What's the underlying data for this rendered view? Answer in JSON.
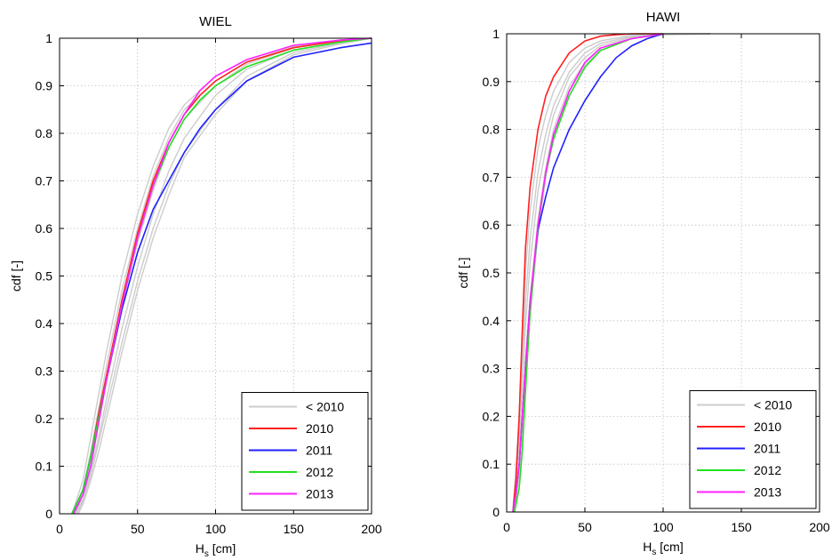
{
  "colors": {
    "pre2010": "#cccccc",
    "y2010": "#ff2020",
    "y2011": "#2020ff",
    "y2012": "#20e020",
    "y2013": "#ff20ff",
    "grid": "#c0c0c0",
    "axis": "#000000"
  },
  "chart_data": [
    {
      "type": "line",
      "title": "WIEL",
      "xlabel": "H",
      "xlabel_sub": "s",
      "xlabel_unit": " [cm]",
      "ylabel": "cdf [-]",
      "xlim": [
        0,
        200
      ],
      "ylim": [
        0,
        1
      ],
      "xticks": [
        0,
        50,
        100,
        150,
        200
      ],
      "yticks": [
        0,
        0.1,
        0.2,
        0.3,
        0.4,
        0.5,
        0.6,
        0.7,
        0.8,
        0.9,
        1
      ],
      "xtick_labels": [
        "0",
        "50",
        "100",
        "150",
        "200"
      ],
      "ytick_labels": [
        "0",
        "0.1",
        "0.2",
        "0.3",
        "0.4",
        "0.5",
        "0.6",
        "0.7",
        "0.8",
        "0.9",
        "1"
      ],
      "grid": true,
      "legend_position": "bottom-right",
      "gray_series": [
        {
          "x": [
            8,
            15,
            20,
            25,
            30,
            40,
            50,
            60,
            70,
            80,
            100,
            120,
            150,
            180,
            200
          ],
          "y": [
            0,
            0.07,
            0.16,
            0.25,
            0.34,
            0.5,
            0.63,
            0.73,
            0.81,
            0.86,
            0.92,
            0.955,
            0.985,
            0.996,
            1
          ]
        },
        {
          "x": [
            9,
            15,
            20,
            25,
            30,
            40,
            50,
            60,
            70,
            80,
            100,
            120,
            150,
            180,
            200
          ],
          "y": [
            0,
            0.05,
            0.13,
            0.22,
            0.31,
            0.47,
            0.6,
            0.71,
            0.79,
            0.85,
            0.91,
            0.95,
            0.982,
            0.995,
            1
          ]
        },
        {
          "x": [
            10,
            15,
            20,
            25,
            30,
            40,
            50,
            60,
            70,
            80,
            100,
            120,
            150,
            180,
            200
          ],
          "y": [
            0,
            0.04,
            0.11,
            0.19,
            0.28,
            0.44,
            0.57,
            0.68,
            0.77,
            0.83,
            0.9,
            0.945,
            0.98,
            0.994,
            1
          ]
        },
        {
          "x": [
            10,
            15,
            20,
            25,
            30,
            40,
            50,
            60,
            70,
            80,
            100,
            120,
            150,
            180,
            200
          ],
          "y": [
            0,
            0.03,
            0.09,
            0.16,
            0.24,
            0.39,
            0.52,
            0.63,
            0.72,
            0.79,
            0.88,
            0.935,
            0.975,
            0.992,
            1
          ]
        },
        {
          "x": [
            11,
            15,
            20,
            25,
            30,
            40,
            50,
            60,
            70,
            80,
            100,
            120,
            150,
            180,
            200
          ],
          "y": [
            0,
            0.025,
            0.08,
            0.15,
            0.22,
            0.36,
            0.49,
            0.6,
            0.69,
            0.76,
            0.85,
            0.92,
            0.97,
            0.99,
            1
          ]
        },
        {
          "x": [
            12,
            15,
            20,
            25,
            30,
            40,
            50,
            60,
            70,
            80,
            100,
            120,
            150,
            180,
            200
          ],
          "y": [
            0,
            0.02,
            0.07,
            0.13,
            0.2,
            0.34,
            0.47,
            0.58,
            0.67,
            0.75,
            0.84,
            0.91,
            0.965,
            0.988,
            1
          ]
        }
      ],
      "series": [
        {
          "name": "< 2010",
          "color_key": "pre2010",
          "legend_only": true,
          "x": [],
          "y": []
        },
        {
          "name": "2010",
          "color_key": "y2010",
          "x": [
            8,
            15,
            20,
            25,
            30,
            40,
            50,
            60,
            70,
            80,
            90,
            100,
            120,
            150,
            180,
            200
          ],
          "y": [
            0,
            0.05,
            0.12,
            0.21,
            0.29,
            0.45,
            0.59,
            0.7,
            0.78,
            0.84,
            0.88,
            0.91,
            0.95,
            0.98,
            0.995,
            1
          ]
        },
        {
          "name": "2011",
          "color_key": "y2011",
          "x": [
            8,
            15,
            20,
            25,
            30,
            40,
            50,
            60,
            70,
            80,
            90,
            100,
            120,
            150,
            180,
            200
          ],
          "y": [
            0,
            0.05,
            0.12,
            0.2,
            0.28,
            0.43,
            0.55,
            0.64,
            0.7,
            0.76,
            0.81,
            0.85,
            0.91,
            0.96,
            0.98,
            0.99
          ]
        },
        {
          "name": "2012",
          "color_key": "y2012",
          "x": [
            8,
            15,
            20,
            25,
            30,
            40,
            50,
            60,
            70,
            80,
            90,
            100,
            120,
            150,
            180,
            200
          ],
          "y": [
            0,
            0.05,
            0.12,
            0.2,
            0.28,
            0.44,
            0.58,
            0.69,
            0.77,
            0.83,
            0.87,
            0.9,
            0.94,
            0.975,
            0.992,
            1
          ]
        },
        {
          "name": "2013",
          "color_key": "y2013",
          "x": [
            9,
            15,
            20,
            25,
            30,
            40,
            50,
            60,
            70,
            80,
            90,
            100,
            120,
            150,
            180,
            200
          ],
          "y": [
            0,
            0.04,
            0.1,
            0.19,
            0.28,
            0.44,
            0.58,
            0.69,
            0.78,
            0.84,
            0.89,
            0.92,
            0.955,
            0.985,
            0.996,
            1
          ]
        }
      ]
    },
    {
      "type": "line",
      "title": "HAWI",
      "xlabel": "H",
      "xlabel_sub": "s",
      "xlabel_unit": " [cm]",
      "ylabel": "cdf [-]",
      "xlim": [
        0,
        200
      ],
      "ylim": [
        0,
        1
      ],
      "xticks": [
        0,
        50,
        100,
        150,
        200
      ],
      "yticks": [
        0,
        0.1,
        0.2,
        0.3,
        0.4,
        0.5,
        0.6,
        0.7,
        0.8,
        0.9,
        1
      ],
      "xtick_labels": [
        "0",
        "50",
        "100",
        "150",
        "200"
      ],
      "ytick_labels": [
        "0",
        "0.1",
        "0.2",
        "0.3",
        "0.4",
        "0.5",
        "0.6",
        "0.7",
        "0.8",
        "0.9",
        "1"
      ],
      "grid": true,
      "legend_position": "bottom-right",
      "gray_series": [
        {
          "x": [
            4,
            8,
            10,
            12,
            15,
            20,
            25,
            30,
            40,
            50,
            60,
            80,
            100,
            130
          ],
          "y": [
            0,
            0.2,
            0.35,
            0.5,
            0.63,
            0.76,
            0.83,
            0.88,
            0.94,
            0.97,
            0.985,
            0.997,
            1,
            1
          ]
        },
        {
          "x": [
            4,
            8,
            10,
            12,
            15,
            20,
            25,
            30,
            40,
            50,
            60,
            80,
            100,
            130
          ],
          "y": [
            0,
            0.17,
            0.3,
            0.44,
            0.57,
            0.71,
            0.79,
            0.85,
            0.92,
            0.96,
            0.98,
            0.995,
            1,
            1
          ]
        },
        {
          "x": [
            4,
            8,
            10,
            12,
            15,
            20,
            25,
            30,
            40,
            50,
            60,
            80,
            100,
            130
          ],
          "y": [
            0,
            0.14,
            0.26,
            0.39,
            0.52,
            0.67,
            0.76,
            0.83,
            0.91,
            0.95,
            0.975,
            0.993,
            0.999,
            1
          ]
        },
        {
          "x": [
            5,
            8,
            10,
            12,
            15,
            20,
            25,
            30,
            40,
            50,
            60,
            80,
            100,
            130
          ],
          "y": [
            0,
            0.1,
            0.2,
            0.32,
            0.45,
            0.61,
            0.72,
            0.8,
            0.89,
            0.94,
            0.97,
            0.99,
            0.998,
            1
          ]
        },
        {
          "x": [
            5,
            8,
            10,
            12,
            15,
            20,
            25,
            30,
            40,
            50,
            60,
            80,
            100,
            130
          ],
          "y": [
            0,
            0.08,
            0.17,
            0.28,
            0.41,
            0.58,
            0.7,
            0.78,
            0.88,
            0.935,
            0.965,
            0.99,
            0.998,
            1
          ]
        }
      ],
      "series": [
        {
          "name": "< 2010",
          "color_key": "pre2010",
          "legend_only": true,
          "x": [],
          "y": []
        },
        {
          "name": "2010",
          "color_key": "y2010",
          "x": [
            4,
            6,
            8,
            10,
            12,
            15,
            20,
            25,
            30,
            40,
            50,
            60,
            70,
            80,
            100
          ],
          "y": [
            0,
            0.07,
            0.2,
            0.38,
            0.55,
            0.68,
            0.8,
            0.87,
            0.91,
            0.96,
            0.985,
            0.995,
            0.998,
            1,
            1
          ]
        },
        {
          "name": "2011",
          "color_key": "y2011",
          "x": [
            4,
            6,
            8,
            10,
            12,
            15,
            20,
            25,
            30,
            40,
            50,
            60,
            70,
            80,
            90,
            100
          ],
          "y": [
            0,
            0.04,
            0.1,
            0.2,
            0.3,
            0.44,
            0.59,
            0.66,
            0.72,
            0.8,
            0.86,
            0.91,
            0.95,
            0.975,
            0.99,
            1
          ]
        },
        {
          "name": "2012",
          "color_key": "y2012",
          "x": [
            5,
            8,
            10,
            12,
            15,
            20,
            25,
            30,
            40,
            50,
            60,
            80,
            100
          ],
          "y": [
            0,
            0.05,
            0.13,
            0.25,
            0.42,
            0.6,
            0.71,
            0.78,
            0.87,
            0.93,
            0.965,
            0.99,
            1
          ]
        },
        {
          "name": "2013",
          "color_key": "y2013",
          "x": [
            4,
            6,
            8,
            10,
            12,
            15,
            20,
            25,
            30,
            40,
            50,
            60,
            80,
            100
          ],
          "y": [
            0,
            0.04,
            0.1,
            0.2,
            0.3,
            0.44,
            0.6,
            0.71,
            0.79,
            0.88,
            0.94,
            0.97,
            0.99,
            1
          ]
        }
      ]
    }
  ]
}
